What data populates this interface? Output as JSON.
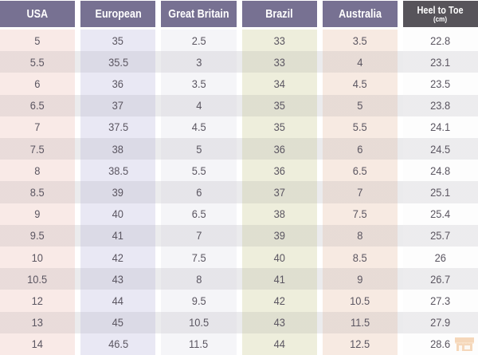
{
  "table": {
    "columns": [
      {
        "label": "USA"
      },
      {
        "label": "European"
      },
      {
        "label": "Great Britain"
      },
      {
        "label": "Brazil"
      },
      {
        "label": "Australia"
      },
      {
        "label": "Heel to Toe",
        "sublabel": "(cm)"
      }
    ],
    "rows": [
      [
        "5",
        "35",
        "2.5",
        "33",
        "3.5",
        "22.8"
      ],
      [
        "5.5",
        "35.5",
        "3",
        "33",
        "4",
        "23.1"
      ],
      [
        "6",
        "36",
        "3.5",
        "34",
        "4.5",
        "23.5"
      ],
      [
        "6.5",
        "37",
        "4",
        "35",
        "5",
        "23.8"
      ],
      [
        "7",
        "37.5",
        "4.5",
        "35",
        "5.5",
        "24.1"
      ],
      [
        "7.5",
        "38",
        "5",
        "36",
        "6",
        "24.5"
      ],
      [
        "8",
        "38.5",
        "5.5",
        "36",
        "6.5",
        "24.8"
      ],
      [
        "8.5",
        "39",
        "6",
        "37",
        "7",
        "25.1"
      ],
      [
        "9",
        "40",
        "6.5",
        "38",
        "7.5",
        "25.4"
      ],
      [
        "9.5",
        "41",
        "7",
        "39",
        "8",
        "25.7"
      ],
      [
        "10",
        "42",
        "7.5",
        "40",
        "8.5",
        "26"
      ],
      [
        "10.5",
        "43",
        "8",
        "41",
        "9",
        "26.7"
      ],
      [
        "12",
        "44",
        "9.5",
        "42",
        "10.5",
        "27.3"
      ],
      [
        "13",
        "45",
        "10.5",
        "43",
        "11.5",
        "27.9"
      ],
      [
        "14",
        "46.5",
        "11.5",
        "44",
        "12.5",
        "28.6"
      ]
    ]
  },
  "chart_data": {
    "type": "table",
    "columns": [
      "USA",
      "European",
      "Great Britain",
      "Brazil",
      "Australia",
      "Heel to Toe (cm)"
    ],
    "rows": [
      [
        5,
        35,
        2.5,
        33,
        3.5,
        22.8
      ],
      [
        5.5,
        35.5,
        3,
        33,
        4,
        23.1
      ],
      [
        6,
        36,
        3.5,
        34,
        4.5,
        23.5
      ],
      [
        6.5,
        37,
        4,
        35,
        5,
        23.8
      ],
      [
        7,
        37.5,
        4.5,
        35,
        5.5,
        24.1
      ],
      [
        7.5,
        38,
        5,
        36,
        6,
        24.5
      ],
      [
        8,
        38.5,
        5.5,
        36,
        6.5,
        24.8
      ],
      [
        8.5,
        39,
        6,
        37,
        7,
        25.1
      ],
      [
        9,
        40,
        6.5,
        38,
        7.5,
        25.4
      ],
      [
        9.5,
        41,
        7,
        39,
        8,
        25.7
      ],
      [
        10,
        42,
        7.5,
        40,
        8.5,
        26
      ],
      [
        10.5,
        43,
        8,
        41,
        9,
        26.7
      ],
      [
        12,
        44,
        9.5,
        42,
        10.5,
        27.3
      ],
      [
        13,
        45,
        10.5,
        43,
        11.5,
        27.9
      ],
      [
        14,
        46.5,
        11.5,
        44,
        12.5,
        28.6
      ]
    ],
    "legend_position": "none",
    "grid": false
  },
  "colors": {
    "header_purple": "#777192",
    "header_dark": "#57545a",
    "header_text": "#ffffff",
    "cell_text": "#5b5661",
    "even_row_tint": "#ebebed",
    "col_usa": "#f9eae7",
    "col_european": "#e9e8f4",
    "col_great_britain": "#f5f5f8",
    "col_brazil": "#eeeedc",
    "col_australia": "#f7eae2",
    "col_heel_to_toe": "#fdfdfd",
    "watermark_orange": "#e8913f"
  },
  "watermark": {
    "icon": "storefront-icon"
  }
}
